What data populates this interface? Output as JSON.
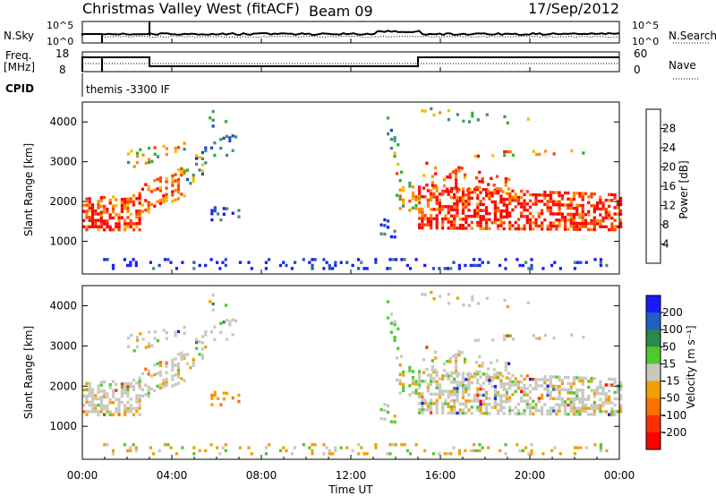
{
  "header": {
    "site": "Christmas Valley West (fitACF)",
    "beam": "Beam 09",
    "date": "17/Sep/2012"
  },
  "noise_panel": {
    "left_label": "N.Sky",
    "right_label": "N.Search",
    "left_ticks": [
      "10^5",
      "10^0"
    ],
    "right_ticks": [
      "10^5",
      "10^0"
    ]
  },
  "freq_panel": {
    "left_label_1": "Freq.",
    "left_label_2": "[MHz]",
    "right_label": "Nave",
    "left_ticks": [
      "18",
      "8"
    ],
    "right_ticks": [
      "60",
      "0"
    ]
  },
  "cpid": {
    "label": "CPID",
    "value": "themis -3300 IF"
  },
  "chart_data": [
    {
      "type": "heatmap",
      "name": "power",
      "ylabel": "Slant Range [km]",
      "yticks": [
        "1000",
        "2000",
        "3000",
        "4000"
      ],
      "colorbar_label": "Power [dB]",
      "colorbar_ticks": [
        "4",
        "8",
        "12",
        "16",
        "20",
        "24",
        "28"
      ],
      "colors": [
        "#1a1aff",
        "#2050c0",
        "#4a8a7a",
        "#32b232",
        "#f0c000",
        "#ff8c00",
        "#ff4000",
        "#ff0000"
      ]
    },
    {
      "type": "heatmap",
      "name": "velocity",
      "ylabel": "Slant Range [km]",
      "yticks": [
        "1000",
        "2000",
        "3000",
        "4000"
      ],
      "colorbar_label": "Velocity [m s⁻¹]",
      "colorbar_ticks": [
        "200",
        "100",
        "50",
        "15",
        "-15",
        "-50",
        "-100",
        "-200"
      ],
      "colors": [
        "#1a1aff",
        "#2060c0",
        "#2a8a4a",
        "#50c830",
        "#c8c8c0",
        "#f0a000",
        "#ff7000",
        "#ff3000",
        "#ff0000"
      ]
    }
  ],
  "time_axis": {
    "label": "Time UT",
    "ticks": [
      "00:00",
      "04:00",
      "08:00",
      "12:00",
      "16:00",
      "20:00",
      "00:00"
    ]
  }
}
